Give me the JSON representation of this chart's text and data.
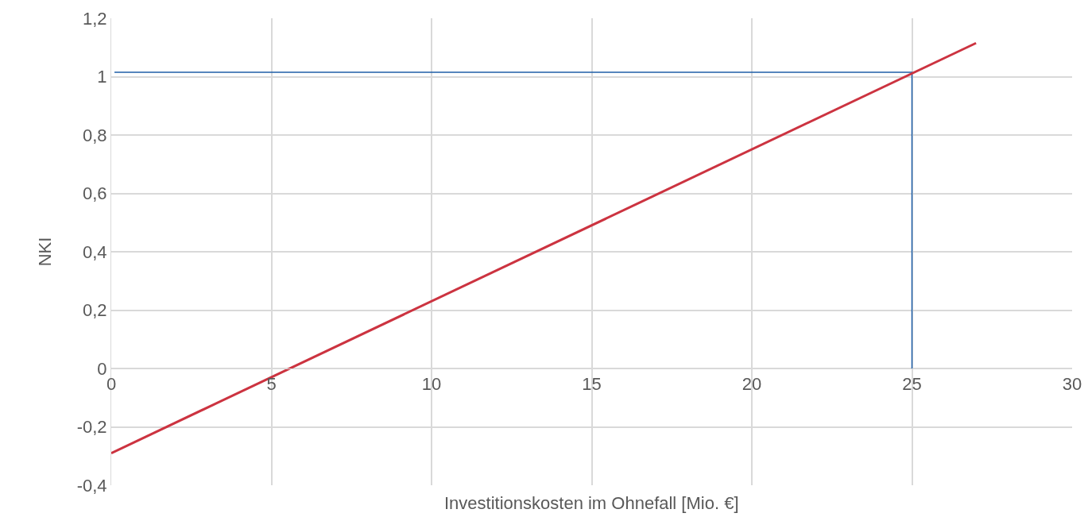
{
  "chart_data": {
    "type": "line",
    "xlabel": "Investitionskosten im Ohnefall [Mio. €]",
    "ylabel": "NKI",
    "series": [
      {
        "color": "#1f5fa8",
        "x": [
          0.1,
          25,
          25
        ],
        "values": [
          1.015,
          1.015,
          0
        ]
      },
      {
        "color": "#cc3340",
        "x": [
          0,
          27
        ],
        "values": [
          -0.29,
          1.115
        ]
      }
    ],
    "xlim": [
      0,
      30
    ],
    "xticks": [
      0,
      5,
      10,
      15,
      20,
      25,
      30
    ],
    "ylim": [
      -0.4,
      1.2
    ],
    "yticks": [
      {
        "value": -0.4,
        "label": "-0,4"
      },
      {
        "value": -0.2,
        "label": "-0,2"
      },
      0,
      {
        "value": 0.2,
        "label": "0,2"
      },
      {
        "value": 0.4,
        "label": "0,4"
      },
      {
        "value": 0.6,
        "label": "0,6"
      },
      {
        "value": 0.8,
        "label": "0,8"
      },
      1,
      {
        "value": 1.2,
        "label": "1,2"
      }
    ],
    "grid": true,
    "marker": "none"
  }
}
